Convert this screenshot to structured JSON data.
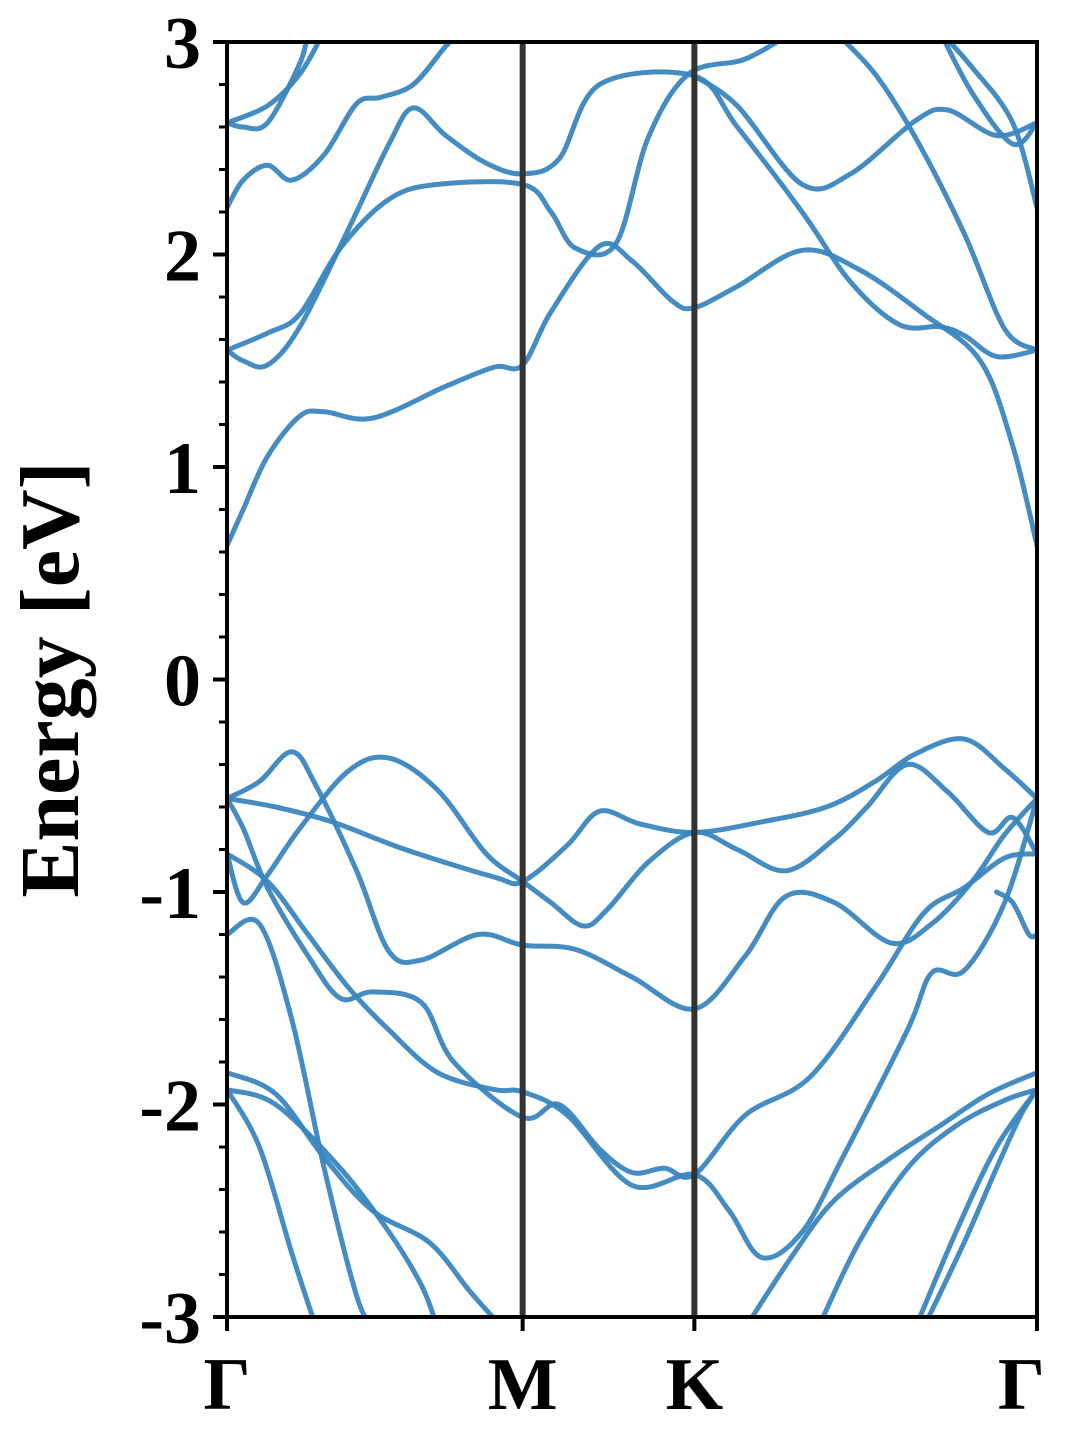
{
  "chart_data": {
    "type": "line",
    "ylabel": "Energy [eV]",
    "xlabel": "",
    "ylim": [
      -3,
      3
    ],
    "yticks": [
      3,
      2,
      1,
      0,
      -1,
      -2,
      -3
    ],
    "ytick_labels": [
      "3",
      "2",
      "1",
      "0",
      "-1",
      "-2",
      "-3"
    ],
    "yminor_step": 0.2,
    "xlim": [
      0,
      1
    ],
    "kpoints": [
      {
        "label": "Γ",
        "x": 0.0
      },
      {
        "label": "M",
        "x": 0.365
      },
      {
        "label": "K",
        "x": 0.577
      },
      {
        "label": "Γ",
        "x": 1.0
      }
    ],
    "grid": false,
    "legend": "none",
    "line_color": "#3a86bf",
    "divider_color": "#333333",
    "series": [
      {
        "values": [
          [
            0,
            0.63
          ],
          [
            0.02,
            0.8
          ],
          [
            0.05,
            1.05
          ],
          [
            0.09,
            1.24
          ],
          [
            0.12,
            1.26
          ],
          [
            0.18,
            1.23
          ],
          [
            0.27,
            1.38
          ],
          [
            0.33,
            1.47
          ],
          [
            0.365,
            1.48
          ],
          [
            0.4,
            1.73
          ],
          [
            0.46,
            2.04
          ],
          [
            0.5,
            1.97
          ],
          [
            0.55,
            1.78
          ],
          [
            0.577,
            1.75
          ],
          [
            0.63,
            1.85
          ],
          [
            0.71,
            2.02
          ],
          [
            0.78,
            1.93
          ],
          [
            0.86,
            1.72
          ],
          [
            0.93,
            1.5
          ],
          [
            0.97,
            1.1
          ],
          [
            1,
            0.63
          ]
        ]
      },
      {
        "values": [
          [
            0,
            1.55
          ],
          [
            0.02,
            1.5
          ],
          [
            0.05,
            1.48
          ],
          [
            0.09,
            1.66
          ],
          [
            0.15,
            2.12
          ],
          [
            0.2,
            2.52
          ],
          [
            0.23,
            2.69
          ],
          [
            0.27,
            2.56
          ],
          [
            0.32,
            2.43
          ],
          [
            0.365,
            2.38
          ],
          [
            0.41,
            2.45
          ],
          [
            0.46,
            2.8
          ],
          [
            0.577,
            2.84
          ],
          [
            0.63,
            2.6
          ],
          [
            0.71,
            2.2
          ],
          [
            0.77,
            1.87
          ],
          [
            0.83,
            1.67
          ],
          [
            0.88,
            1.66
          ],
          [
            0.91,
            1.62
          ],
          [
            0.95,
            1.52
          ],
          [
            1,
            1.55
          ]
        ]
      },
      {
        "values": [
          [
            0,
            1.55
          ],
          [
            0.05,
            1.63
          ],
          [
            0.09,
            1.72
          ],
          [
            0.14,
            2.03
          ],
          [
            0.2,
            2.26
          ],
          [
            0.26,
            2.33
          ],
          [
            0.365,
            2.33
          ],
          [
            0.4,
            2.2
          ],
          [
            0.43,
            2.03
          ],
          [
            0.48,
            2.05
          ],
          [
            0.52,
            2.55
          ],
          [
            0.57,
            2.85
          ],
          [
            0.64,
            2.92
          ],
          [
            0.7,
            3.05
          ]
        ]
      },
      {
        "values": [
          [
            0,
            2.22
          ],
          [
            0.02,
            2.35
          ],
          [
            0.05,
            2.42
          ],
          [
            0.08,
            2.35
          ],
          [
            0.12,
            2.47
          ],
          [
            0.16,
            2.71
          ],
          [
            0.19,
            2.74
          ],
          [
            0.23,
            2.8
          ],
          [
            0.27,
            2.98
          ],
          [
            0.29,
            3.05
          ]
        ]
      },
      {
        "values": [
          [
            0,
            2.62
          ],
          [
            0.05,
            2.7
          ],
          [
            0.09,
            2.85
          ],
          [
            0.12,
            3.05
          ]
        ]
      },
      {
        "values": [
          [
            0,
            2.62
          ],
          [
            0.02,
            2.6
          ],
          [
            0.05,
            2.62
          ],
          [
            0.09,
            2.9
          ],
          [
            0.1,
            3.05
          ]
        ]
      },
      {
        "values": [
          [
            0.577,
            2.84
          ],
          [
            0.63,
            2.7
          ],
          [
            0.71,
            2.33
          ],
          [
            0.77,
            2.38
          ],
          [
            0.85,
            2.63
          ],
          [
            0.89,
            2.68
          ],
          [
            0.95,
            2.56
          ],
          [
            1,
            2.62
          ]
        ]
      },
      {
        "values": [
          [
            0.75,
            3.05
          ],
          [
            0.8,
            2.85
          ],
          [
            0.85,
            2.55
          ],
          [
            0.91,
            2.1
          ],
          [
            0.96,
            1.65
          ],
          [
            1,
            1.55
          ]
        ]
      },
      {
        "values": [
          [
            0.88,
            3.05
          ],
          [
            0.92,
            2.76
          ],
          [
            0.97,
            2.52
          ],
          [
            1,
            2.62
          ]
        ]
      },
      {
        "values": [
          [
            0.88,
            3.05
          ],
          [
            0.92,
            2.88
          ],
          [
            0.97,
            2.62
          ],
          [
            1,
            2.22
          ]
        ]
      },
      {
        "values": [
          [
            0,
            -0.56
          ],
          [
            0.04,
            -0.48
          ],
          [
            0.08,
            -0.34
          ],
          [
            0.11,
            -0.5
          ],
          [
            0.16,
            -0.9
          ],
          [
            0.2,
            -1.28
          ],
          [
            0.24,
            -1.32
          ],
          [
            0.31,
            -1.2
          ],
          [
            0.365,
            -1.25
          ],
          [
            0.43,
            -1.27
          ],
          [
            0.5,
            -1.4
          ],
          [
            0.577,
            -1.55
          ],
          [
            0.64,
            -1.3
          ],
          [
            0.69,
            -1.02
          ],
          [
            0.75,
            -1.05
          ],
          [
            0.82,
            -1.24
          ],
          [
            0.87,
            -1.15
          ],
          [
            0.92,
            -0.95
          ],
          [
            0.96,
            -0.73
          ],
          [
            1,
            -0.56
          ]
        ]
      },
      {
        "values": [
          [
            0,
            -0.56
          ],
          [
            0.06,
            -0.6
          ],
          [
            0.13,
            -0.67
          ],
          [
            0.22,
            -0.8
          ],
          [
            0.33,
            -0.93
          ],
          [
            0.365,
            -0.95
          ],
          [
            0.42,
            -0.78
          ],
          [
            0.46,
            -0.62
          ],
          [
            0.51,
            -0.68
          ],
          [
            0.577,
            -0.72
          ],
          [
            0.66,
            -0.67
          ],
          [
            0.74,
            -0.6
          ],
          [
            0.8,
            -0.48
          ],
          [
            0.85,
            -0.35
          ],
          [
            0.91,
            -0.28
          ],
          [
            0.96,
            -0.42
          ],
          [
            1,
            -0.56
          ]
        ]
      },
      {
        "values": [
          [
            0,
            -0.82
          ],
          [
            0.02,
            -1.05
          ],
          [
            0.05,
            -0.92
          ],
          [
            0.09,
            -0.7
          ],
          [
            0.15,
            -0.43
          ],
          [
            0.2,
            -0.37
          ],
          [
            0.26,
            -0.52
          ],
          [
            0.32,
            -0.82
          ],
          [
            0.365,
            -0.95
          ],
          [
            0.4,
            -1.05
          ],
          [
            0.44,
            -1.16
          ],
          [
            0.47,
            -1.08
          ],
          [
            0.52,
            -0.86
          ],
          [
            0.577,
            -0.72
          ],
          [
            0.63,
            -0.8
          ],
          [
            0.69,
            -0.9
          ],
          [
            0.75,
            -0.75
          ],
          [
            0.79,
            -0.6
          ],
          [
            0.84,
            -0.4
          ],
          [
            0.89,
            -0.53
          ],
          [
            0.94,
            -0.72
          ],
          [
            0.97,
            -0.65
          ],
          [
            1,
            -0.82
          ]
        ]
      },
      {
        "values": [
          [
            0,
            -0.56
          ],
          [
            0.02,
            -0.7
          ],
          [
            0.05,
            -0.98
          ],
          [
            0.1,
            -1.3
          ],
          [
            0.14,
            -1.5
          ],
          [
            0.18,
            -1.47
          ],
          [
            0.24,
            -1.52
          ],
          [
            0.28,
            -1.8
          ],
          [
            0.365,
            -2.06
          ],
          [
            0.41,
            -2.0
          ],
          [
            0.46,
            -2.21
          ],
          [
            0.5,
            -2.32
          ],
          [
            0.54,
            -2.3
          ],
          [
            0.577,
            -2.33
          ],
          [
            0.64,
            -2.05
          ],
          [
            0.72,
            -1.87
          ],
          [
            0.8,
            -1.45
          ],
          [
            0.86,
            -1.1
          ],
          [
            0.91,
            -0.98
          ],
          [
            0.96,
            -0.84
          ],
          [
            1,
            -0.82
          ]
        ]
      },
      {
        "values": [
          [
            0,
            -0.82
          ],
          [
            0.05,
            -0.95
          ],
          [
            0.1,
            -1.2
          ],
          [
            0.15,
            -1.45
          ],
          [
            0.2,
            -1.65
          ],
          [
            0.26,
            -1.85
          ],
          [
            0.33,
            -1.93
          ],
          [
            0.365,
            -1.94
          ],
          [
            0.42,
            -2.05
          ],
          [
            0.5,
            -2.38
          ],
          [
            0.577,
            -2.33
          ],
          [
            0.62,
            -2.5
          ],
          [
            0.66,
            -2.72
          ],
          [
            0.71,
            -2.6
          ],
          [
            0.76,
            -2.25
          ],
          [
            0.84,
            -1.65
          ],
          [
            0.87,
            -1.38
          ],
          [
            0.91,
            -1.37
          ],
          [
            0.96,
            -1.05
          ],
          [
            1,
            -0.56
          ]
        ]
      },
      {
        "values": [
          [
            0,
            -1.2
          ],
          [
            0.04,
            -1.15
          ],
          [
            0.08,
            -1.6
          ],
          [
            0.12,
            -2.3
          ],
          [
            0.16,
            -2.9
          ],
          [
            0.18,
            -3.05
          ]
        ]
      },
      {
        "values": [
          [
            0,
            -1.85
          ],
          [
            0.06,
            -1.95
          ],
          [
            0.12,
            -2.25
          ],
          [
            0.18,
            -2.5
          ],
          [
            0.25,
            -2.65
          ],
          [
            0.3,
            -2.88
          ],
          [
            0.34,
            -3.05
          ]
        ]
      },
      {
        "values": [
          [
            0,
            -1.93
          ],
          [
            0.06,
            -2.0
          ],
          [
            0.14,
            -2.3
          ],
          [
            0.2,
            -2.6
          ],
          [
            0.24,
            -2.85
          ],
          [
            0.26,
            -3.05
          ]
        ]
      },
      {
        "values": [
          [
            0,
            -1.93
          ],
          [
            0.04,
            -2.2
          ],
          [
            0.08,
            -2.7
          ],
          [
            0.11,
            -3.05
          ]
        ]
      },
      {
        "values": [
          [
            0.64,
            -3.05
          ],
          [
            0.7,
            -2.7
          ],
          [
            0.75,
            -2.45
          ],
          [
            0.82,
            -2.25
          ],
          [
            0.88,
            -2.1
          ],
          [
            0.94,
            -1.95
          ],
          [
            1,
            -1.85
          ]
        ]
      },
      {
        "values": [
          [
            0.73,
            -3.05
          ],
          [
            0.78,
            -2.65
          ],
          [
            0.84,
            -2.3
          ],
          [
            0.9,
            -2.1
          ],
          [
            0.96,
            -1.98
          ],
          [
            1,
            -1.93
          ]
        ]
      },
      {
        "values": [
          [
            0.85,
            -3.05
          ],
          [
            0.9,
            -2.6
          ],
          [
            0.95,
            -2.2
          ],
          [
            1,
            -1.93
          ]
        ]
      },
      {
        "values": [
          [
            0.86,
            -3.05
          ],
          [
            0.91,
            -2.65
          ],
          [
            0.95,
            -2.3
          ],
          [
            0.98,
            -2.05
          ],
          [
            1,
            -1.93
          ]
        ]
      },
      {
        "values": [
          [
            0.95,
            -1.0
          ],
          [
            0.97,
            -1.05
          ],
          [
            0.99,
            -1.2
          ],
          [
            1,
            -1.2
          ]
        ]
      }
    ]
  }
}
